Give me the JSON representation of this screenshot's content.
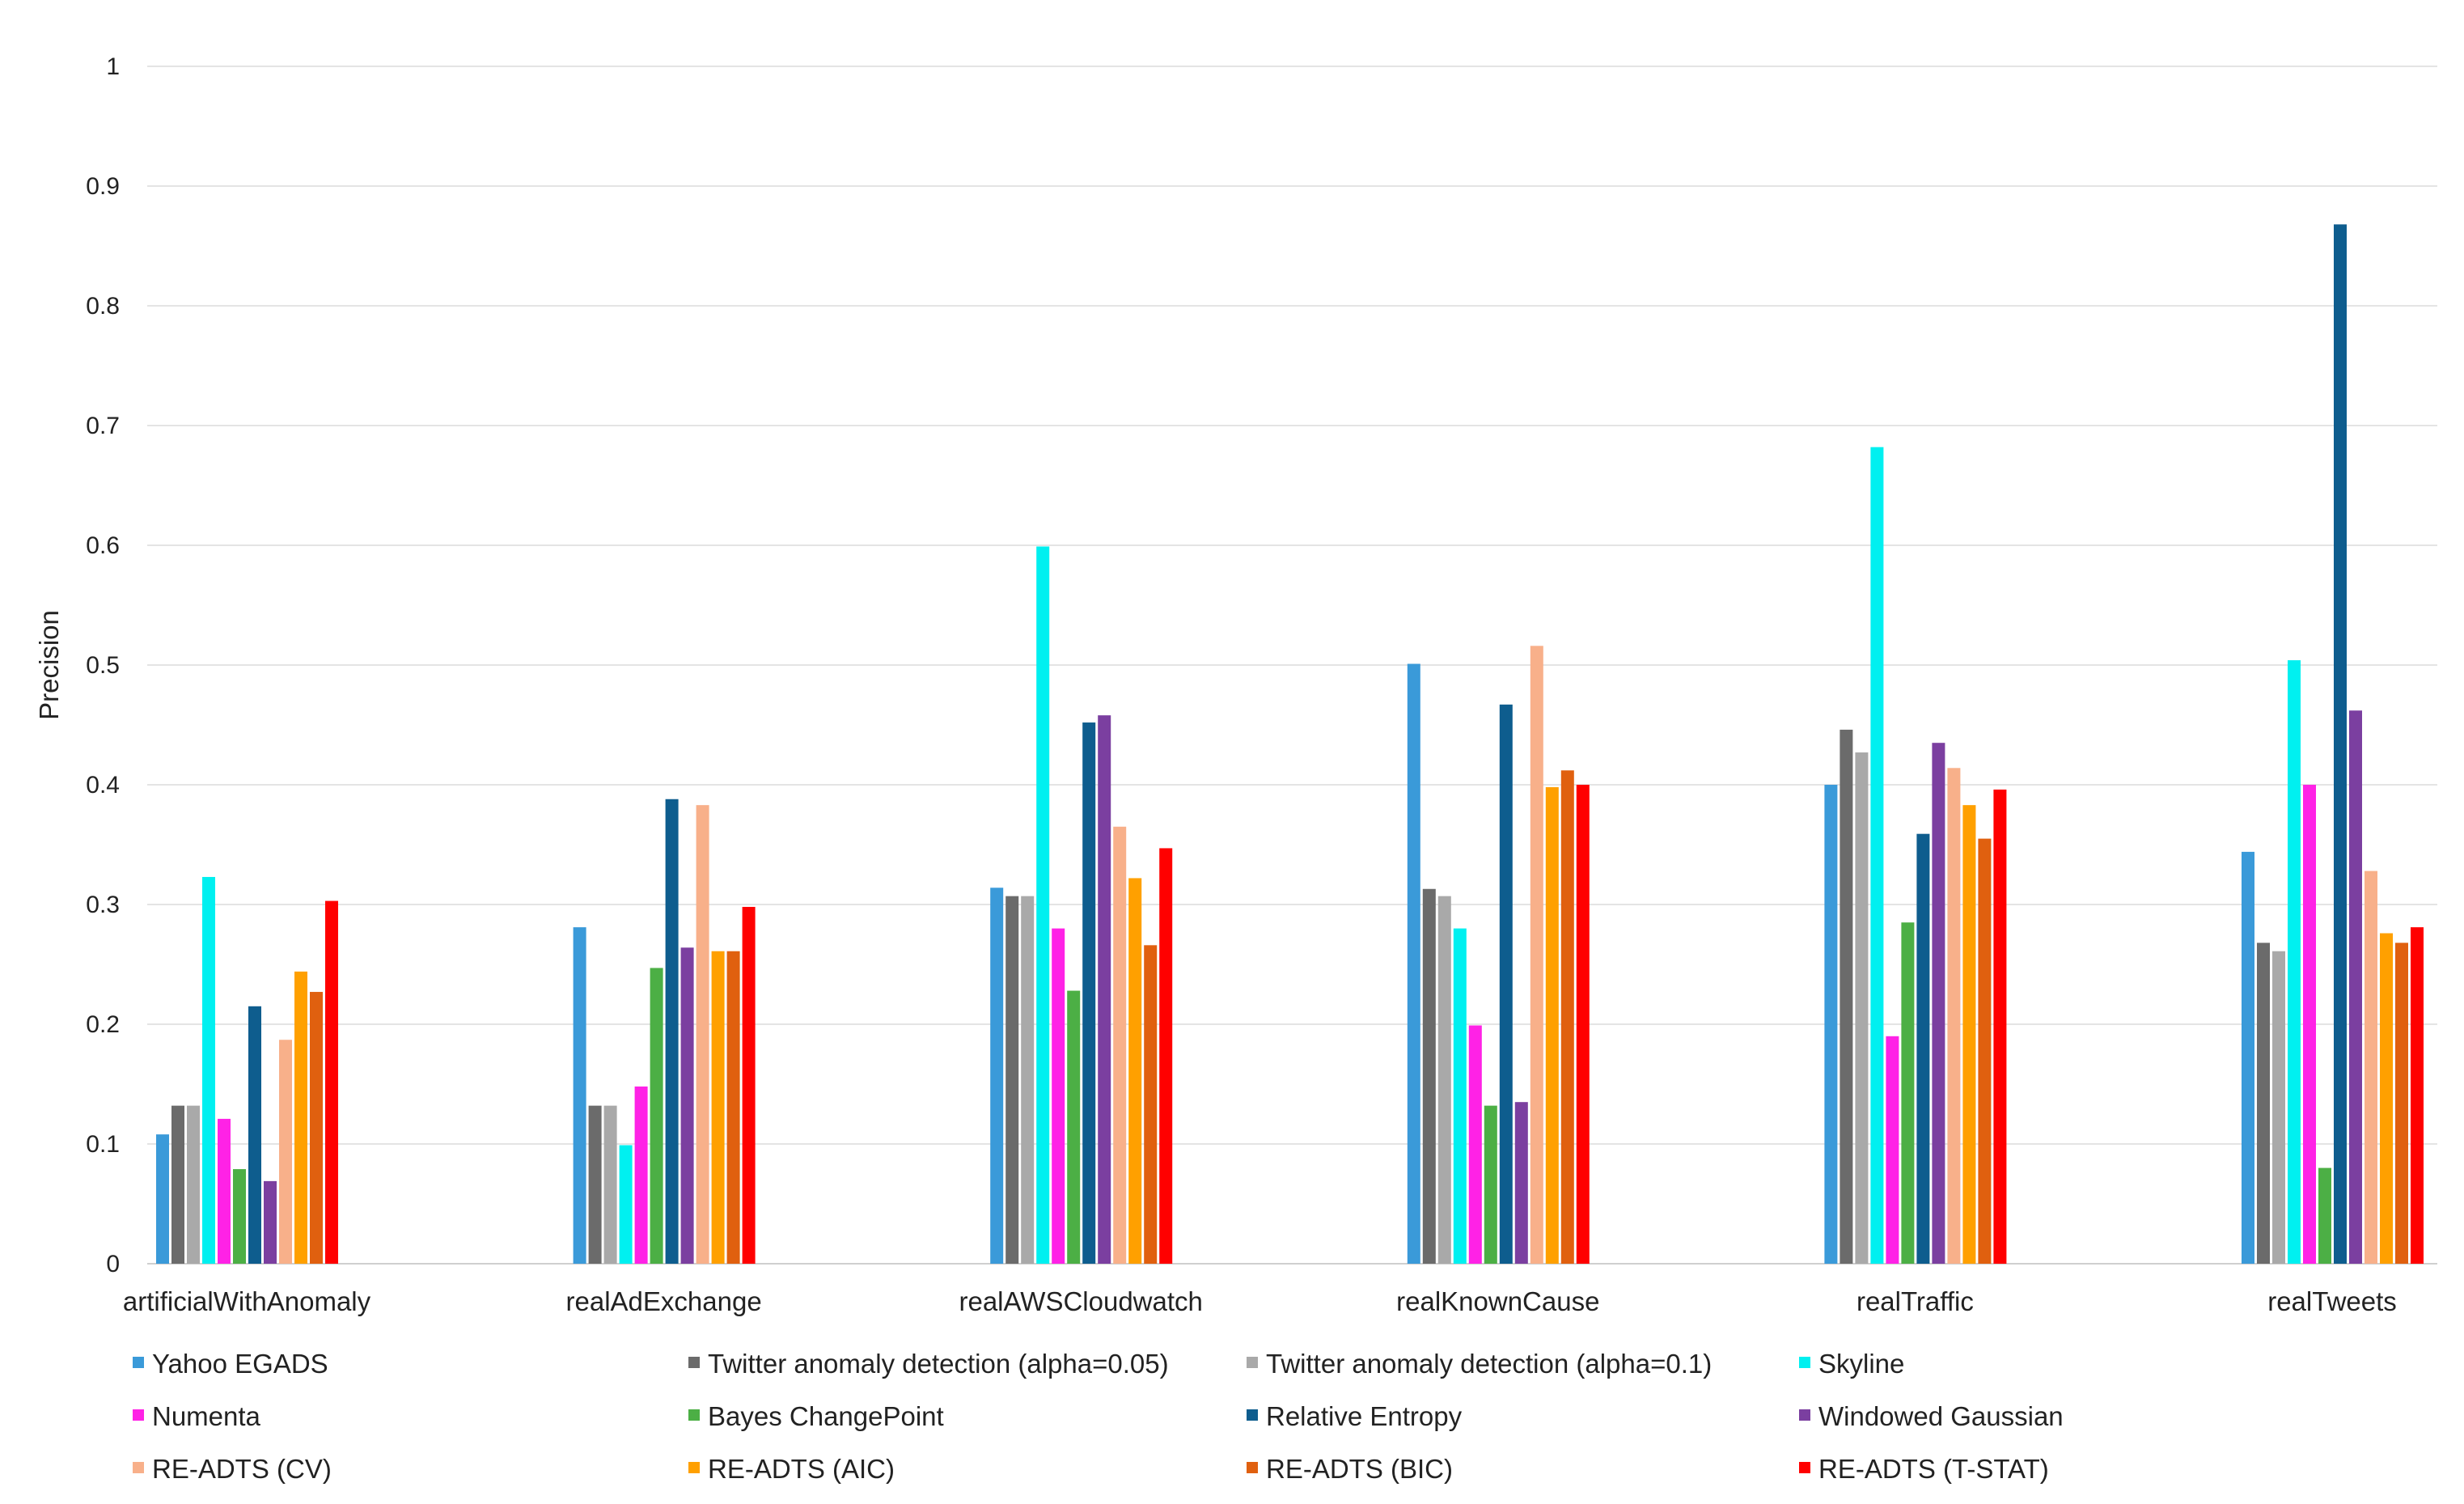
{
  "chart_data": {
    "type": "bar",
    "title": "",
    "xlabel": "",
    "ylabel": "Precision",
    "ylim": [
      0,
      1
    ],
    "yticks": [
      "0",
      "0.1",
      "0.2",
      "0.3",
      "0.4",
      "0.5",
      "0.6",
      "0.7",
      "0.8",
      "0.9",
      "1"
    ],
    "grid": true,
    "legend_position": "bottom",
    "categories": [
      "artificialWithAnomaly",
      "realAdExchange",
      "realAWSCloudwatch",
      "realKnownCause",
      "realTraffic",
      "realTweets"
    ],
    "series": [
      {
        "name": "Yahoo EGADS",
        "color": "#3a9ad9",
        "values": [
          0.108,
          0.281,
          0.314,
          0.501,
          0.4,
          0.344
        ]
      },
      {
        "name": "Twitter anomaly detection (alpha=0.05)",
        "color": "#6b6b6b",
        "values": [
          0.132,
          0.132,
          0.307,
          0.313,
          0.446,
          0.268
        ]
      },
      {
        "name": "Twitter anomaly detection (alpha=0.1)",
        "color": "#a9a9a9",
        "values": [
          0.132,
          0.132,
          0.307,
          0.307,
          0.427,
          0.261
        ]
      },
      {
        "name": "Skyline",
        "color": "#00f0f0",
        "values": [
          0.323,
          0.099,
          0.599,
          0.28,
          0.682,
          0.504
        ]
      },
      {
        "name": "Numenta",
        "color": "#ff22e6",
        "values": [
          0.121,
          0.148,
          0.28,
          0.199,
          0.19,
          0.4
        ]
      },
      {
        "name": "Bayes ChangePoint",
        "color": "#4caf45",
        "values": [
          0.079,
          0.247,
          0.228,
          0.132,
          0.285,
          0.08
        ]
      },
      {
        "name": "Relative Entropy",
        "color": "#0e5d8e",
        "values": [
          0.215,
          0.388,
          0.452,
          0.467,
          0.359,
          0.868
        ]
      },
      {
        "name": "Windowed Gaussian",
        "color": "#7b3fa0",
        "values": [
          0.069,
          0.264,
          0.458,
          0.135,
          0.435,
          0.462
        ]
      },
      {
        "name": "RE-ADTS (CV)",
        "color": "#f8b08a",
        "values": [
          0.187,
          0.383,
          0.365,
          0.516,
          0.414,
          0.328
        ]
      },
      {
        "name": "RE-ADTS (AIC)",
        "color": "#ffa000",
        "values": [
          0.244,
          0.261,
          0.322,
          0.398,
          0.383,
          0.276
        ]
      },
      {
        "name": "RE-ADTS (BIC)",
        "color": "#e0600f",
        "values": [
          0.227,
          0.261,
          0.266,
          0.412,
          0.355,
          0.268
        ]
      },
      {
        "name": "RE-ADTS (T-STAT)",
        "color": "#ff0000",
        "values": [
          0.303,
          0.298,
          0.347,
          0.4,
          0.396,
          0.281
        ]
      }
    ]
  }
}
